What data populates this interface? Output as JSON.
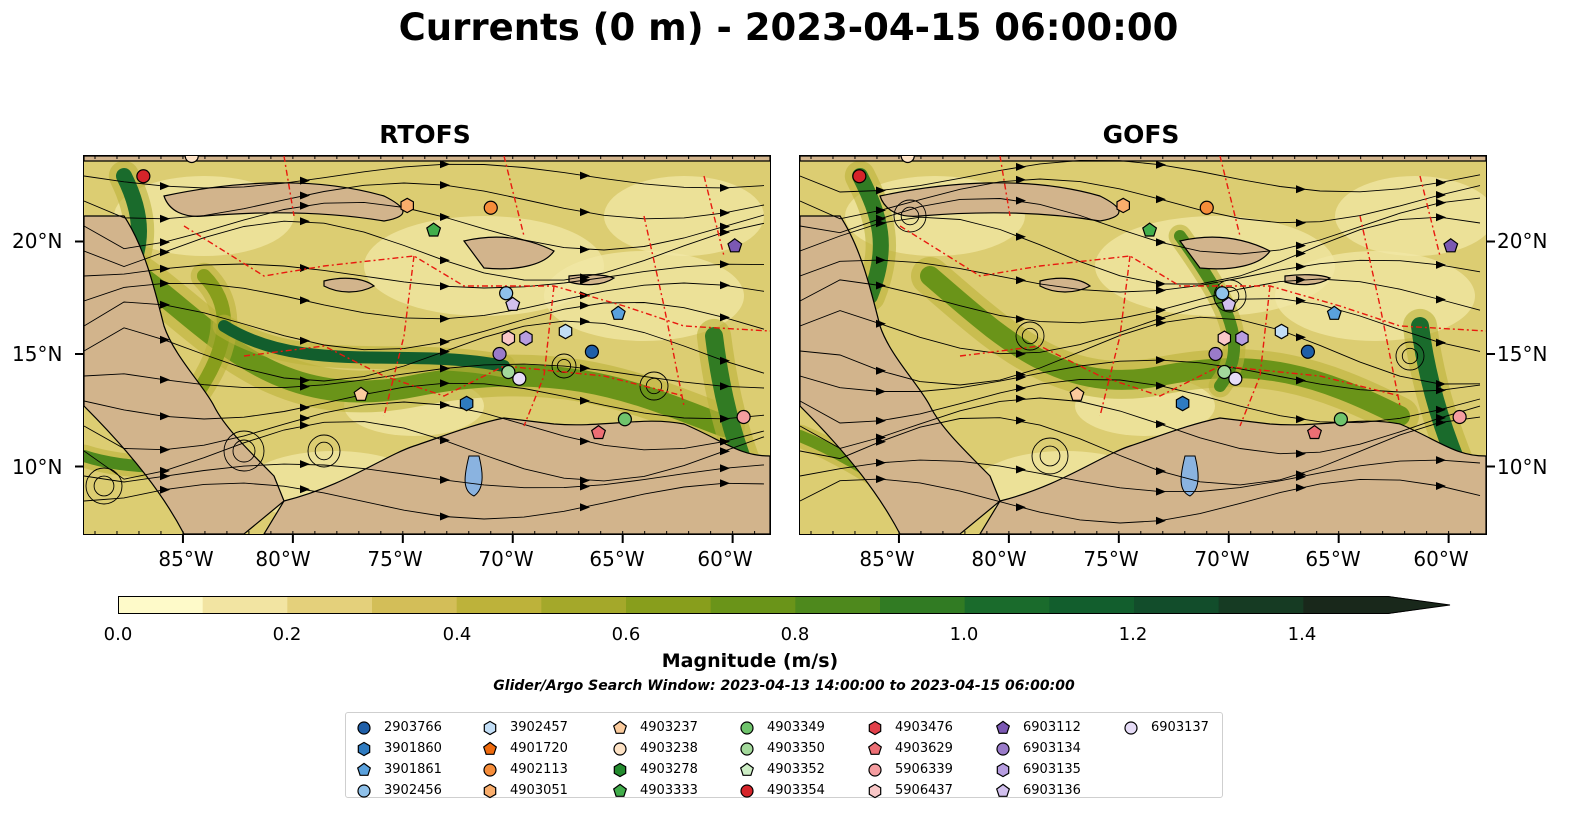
{
  "title": "Currents (0 m) - 2023-04-15 06:00:00",
  "panels": [
    {
      "title": "RTOFS"
    },
    {
      "title": "GOFS"
    }
  ],
  "axes": {
    "lon_ticks": [
      "85°W",
      "80°W",
      "75°W",
      "70°W",
      "65°W",
      "60°W"
    ],
    "lat_ticks": [
      "20°N",
      "15°N",
      "10°N"
    ]
  },
  "colorbar": {
    "label": "Magnitude (m/s)",
    "ticks": [
      "0.0",
      "0.2",
      "0.4",
      "0.6",
      "0.8",
      "1.0",
      "1.2",
      "1.4"
    ],
    "colors": [
      "#fefac9",
      "#f2e4a2",
      "#e4d07b",
      "#d3be58",
      "#bdb23a",
      "#a4a82a",
      "#889e1c",
      "#6a9419",
      "#4e891d",
      "#317b23",
      "#1a6b2c",
      "#125e2d",
      "#124d2b",
      "#163b23",
      "#19281b"
    ],
    "extend": "max"
  },
  "search_window": "Glider/Argo Search Window: 2023-04-13 14:00:00 to 2023-04-15 06:00:00",
  "legend": [
    {
      "label": "2903766",
      "marker": "circle",
      "color": "#1f5fa8"
    },
    {
      "label": "3901860",
      "marker": "hexagon",
      "color": "#2f7bc0"
    },
    {
      "label": "3901861",
      "marker": "pentagon",
      "color": "#5aa1dd"
    },
    {
      "label": "3902456",
      "marker": "circle",
      "color": "#8fc1ea"
    },
    {
      "label": "3902457",
      "marker": "hexagon",
      "color": "#c2def6"
    },
    {
      "label": "4901720",
      "marker": "pentagon",
      "color": "#ef6a0d"
    },
    {
      "label": "4902113",
      "marker": "circle",
      "color": "#f68d3a"
    },
    {
      "label": "4903051",
      "marker": "hexagon",
      "color": "#f9ad6c"
    },
    {
      "label": "4903237",
      "marker": "pentagon",
      "color": "#fbcb9d"
    },
    {
      "label": "4903238",
      "marker": "circle",
      "color": "#fde2c5"
    },
    {
      "label": "4903278",
      "marker": "hexagon",
      "color": "#238b2e"
    },
    {
      "label": "4903333",
      "marker": "pentagon",
      "color": "#42ad4b"
    },
    {
      "label": "4903349",
      "marker": "circle",
      "color": "#6fc46c"
    },
    {
      "label": "4903350",
      "marker": "circle",
      "color": "#a3d99b"
    },
    {
      "label": "4903352",
      "marker": "pentagon",
      "color": "#cdeec5"
    },
    {
      "label": "4903354",
      "marker": "circle",
      "color": "#d6242a"
    },
    {
      "label": "4903476",
      "marker": "hexagon",
      "color": "#e2404a"
    },
    {
      "label": "4903629",
      "marker": "pentagon",
      "color": "#ec6e74"
    },
    {
      "label": "5906339",
      "marker": "circle",
      "color": "#f59da0"
    },
    {
      "label": "5906437",
      "marker": "hexagon",
      "color": "#f9c7c7"
    },
    {
      "label": "6903112",
      "marker": "pentagon",
      "color": "#7b58b3"
    },
    {
      "label": "6903134",
      "marker": "circle",
      "color": "#9a7bc9"
    },
    {
      "label": "6903135",
      "marker": "hexagon",
      "color": "#b79de0"
    },
    {
      "label": "6903136",
      "marker": "pentagon",
      "color": "#d2c0ee"
    },
    {
      "label": "6903137",
      "marker": "circle",
      "color": "#e6dcf7"
    }
  ],
  "stations": [
    {
      "id": "4903354",
      "lon": -86.8,
      "lat": 22.9
    },
    {
      "id": "4903051",
      "lon": -74.8,
      "lat": 21.6
    },
    {
      "id": "4902113",
      "lon": -71.0,
      "lat": 21.5
    },
    {
      "id": "4903333",
      "lon": -73.6,
      "lat": 20.5
    },
    {
      "id": "6903112",
      "lon": -59.9,
      "lat": 19.8
    },
    {
      "id": "3902456",
      "lon": -70.3,
      "lat": 17.7
    },
    {
      "id": "6903136",
      "lon": -70.0,
      "lat": 17.2
    },
    {
      "id": "3902457",
      "lon": -67.6,
      "lat": 16.0
    },
    {
      "id": "3901861",
      "lon": -65.2,
      "lat": 16.8
    },
    {
      "id": "5906437",
      "lon": -70.2,
      "lat": 15.7
    },
    {
      "id": "6903135",
      "lon": -69.4,
      "lat": 15.7
    },
    {
      "id": "6903134",
      "lon": -70.6,
      "lat": 15.0
    },
    {
      "id": "2903766",
      "lon": -66.4,
      "lat": 15.1
    },
    {
      "id": "4903350",
      "lon": -70.2,
      "lat": 14.2
    },
    {
      "id": "6903137",
      "lon": -69.7,
      "lat": 13.9
    },
    {
      "id": "4903237",
      "lon": -76.9,
      "lat": 13.2
    },
    {
      "id": "3901860",
      "lon": -72.1,
      "lat": 12.8
    },
    {
      "id": "4903349",
      "lon": -64.9,
      "lat": 12.1
    },
    {
      "id": "4903629",
      "lon": -66.1,
      "lat": 11.5
    },
    {
      "id": "5906339",
      "lon": -59.5,
      "lat": 12.2
    },
    {
      "id": "4903238",
      "lon": -84.6,
      "lat": 23.8
    }
  ]
}
